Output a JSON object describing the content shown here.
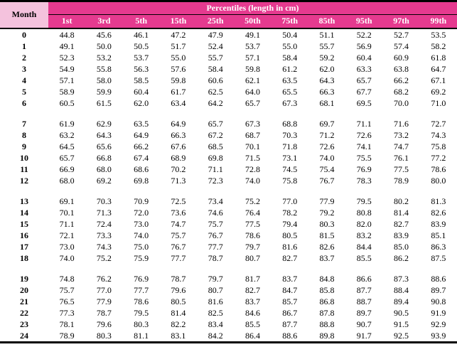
{
  "colors": {
    "header_bg": "#e53a8f",
    "month_header_bg": "#f4c2dd",
    "header_text": "#ffffff",
    "body_text": "#000000",
    "rule_color": "#000000"
  },
  "chart_data": {
    "type": "table",
    "title": "Percentiles (length in cm)",
    "row_header_label": "Month",
    "columns": [
      "1st",
      "3rd",
      "5th",
      "15th",
      "25th",
      "50th",
      "75th",
      "85th",
      "95th",
      "97th",
      "99th"
    ],
    "groups": [
      {
        "rows": [
          {
            "month": 0,
            "values": [
              44.8,
              45.6,
              46.1,
              47.2,
              47.9,
              49.1,
              50.4,
              51.1,
              52.2,
              52.7,
              53.5
            ]
          },
          {
            "month": 1,
            "values": [
              49.1,
              50.0,
              50.5,
              51.7,
              52.4,
              53.7,
              55.0,
              55.7,
              56.9,
              57.4,
              58.2
            ]
          },
          {
            "month": 2,
            "values": [
              52.3,
              53.2,
              53.7,
              55.0,
              55.7,
              57.1,
              58.4,
              59.2,
              60.4,
              60.9,
              61.8
            ]
          },
          {
            "month": 3,
            "values": [
              54.9,
              55.8,
              56.3,
              57.6,
              58.4,
              59.8,
              61.2,
              62.0,
              63.3,
              63.8,
              64.7
            ]
          },
          {
            "month": 4,
            "values": [
              57.1,
              58.0,
              58.5,
              59.8,
              60.6,
              62.1,
              63.5,
              64.3,
              65.7,
              66.2,
              67.1
            ]
          },
          {
            "month": 5,
            "values": [
              58.9,
              59.9,
              60.4,
              61.7,
              62.5,
              64.0,
              65.5,
              66.3,
              67.7,
              68.2,
              69.2
            ]
          },
          {
            "month": 6,
            "values": [
              60.5,
              61.5,
              62.0,
              63.4,
              64.2,
              65.7,
              67.3,
              68.1,
              69.5,
              70.0,
              71.0
            ]
          }
        ]
      },
      {
        "rows": [
          {
            "month": 7,
            "values": [
              61.9,
              62.9,
              63.5,
              64.9,
              65.7,
              67.3,
              68.8,
              69.7,
              71.1,
              71.6,
              72.7
            ]
          },
          {
            "month": 8,
            "values": [
              63.2,
              64.3,
              64.9,
              66.3,
              67.2,
              68.7,
              70.3,
              71.2,
              72.6,
              73.2,
              74.3
            ]
          },
          {
            "month": 9,
            "values": [
              64.5,
              65.6,
              66.2,
              67.6,
              68.5,
              70.1,
              71.8,
              72.6,
              74.1,
              74.7,
              75.8
            ]
          },
          {
            "month": 10,
            "values": [
              65.7,
              66.8,
              67.4,
              68.9,
              69.8,
              71.5,
              73.1,
              74.0,
              75.5,
              76.1,
              77.2
            ]
          },
          {
            "month": 11,
            "values": [
              66.9,
              68.0,
              68.6,
              70.2,
              71.1,
              72.8,
              74.5,
              75.4,
              76.9,
              77.5,
              78.6
            ]
          },
          {
            "month": 12,
            "values": [
              68.0,
              69.2,
              69.8,
              71.3,
              72.3,
              74.0,
              75.8,
              76.7,
              78.3,
              78.9,
              80.0
            ]
          }
        ]
      },
      {
        "rows": [
          {
            "month": 13,
            "values": [
              69.1,
              70.3,
              70.9,
              72.5,
              73.4,
              75.2,
              77.0,
              77.9,
              79.5,
              80.2,
              81.3
            ]
          },
          {
            "month": 14,
            "values": [
              70.1,
              71.3,
              72.0,
              73.6,
              74.6,
              76.4,
              78.2,
              79.2,
              80.8,
              81.4,
              82.6
            ]
          },
          {
            "month": 15,
            "values": [
              71.1,
              72.4,
              73.0,
              74.7,
              75.7,
              77.5,
              79.4,
              80.3,
              82.0,
              82.7,
              83.9
            ]
          },
          {
            "month": 16,
            "values": [
              72.1,
              73.3,
              74.0,
              75.7,
              76.7,
              78.6,
              80.5,
              81.5,
              83.2,
              83.9,
              85.1
            ]
          },
          {
            "month": 17,
            "values": [
              73.0,
              74.3,
              75.0,
              76.7,
              77.7,
              79.7,
              81.6,
              82.6,
              84.4,
              85.0,
              86.3
            ]
          },
          {
            "month": 18,
            "values": [
              74.0,
              75.2,
              75.9,
              77.7,
              78.7,
              80.7,
              82.7,
              83.7,
              85.5,
              86.2,
              87.5
            ]
          }
        ]
      },
      {
        "rows": [
          {
            "month": 19,
            "values": [
              74.8,
              76.2,
              76.9,
              78.7,
              79.7,
              81.7,
              83.7,
              84.8,
              86.6,
              87.3,
              88.6
            ]
          },
          {
            "month": 20,
            "values": [
              75.7,
              77.0,
              77.7,
              79.6,
              80.7,
              82.7,
              84.7,
              85.8,
              87.7,
              88.4,
              89.7
            ]
          },
          {
            "month": 21,
            "values": [
              76.5,
              77.9,
              78.6,
              80.5,
              81.6,
              83.7,
              85.7,
              86.8,
              88.7,
              89.4,
              90.8
            ]
          },
          {
            "month": 22,
            "values": [
              77.3,
              78.7,
              79.5,
              81.4,
              82.5,
              84.6,
              86.7,
              87.8,
              89.7,
              90.5,
              91.9
            ]
          },
          {
            "month": 23,
            "values": [
              78.1,
              79.6,
              80.3,
              82.2,
              83.4,
              85.5,
              87.7,
              88.8,
              90.7,
              91.5,
              92.9
            ]
          },
          {
            "month": 24,
            "values": [
              78.9,
              80.3,
              81.1,
              83.1,
              84.2,
              86.4,
              88.6,
              89.8,
              91.7,
              92.5,
              93.9
            ]
          }
        ]
      }
    ]
  }
}
